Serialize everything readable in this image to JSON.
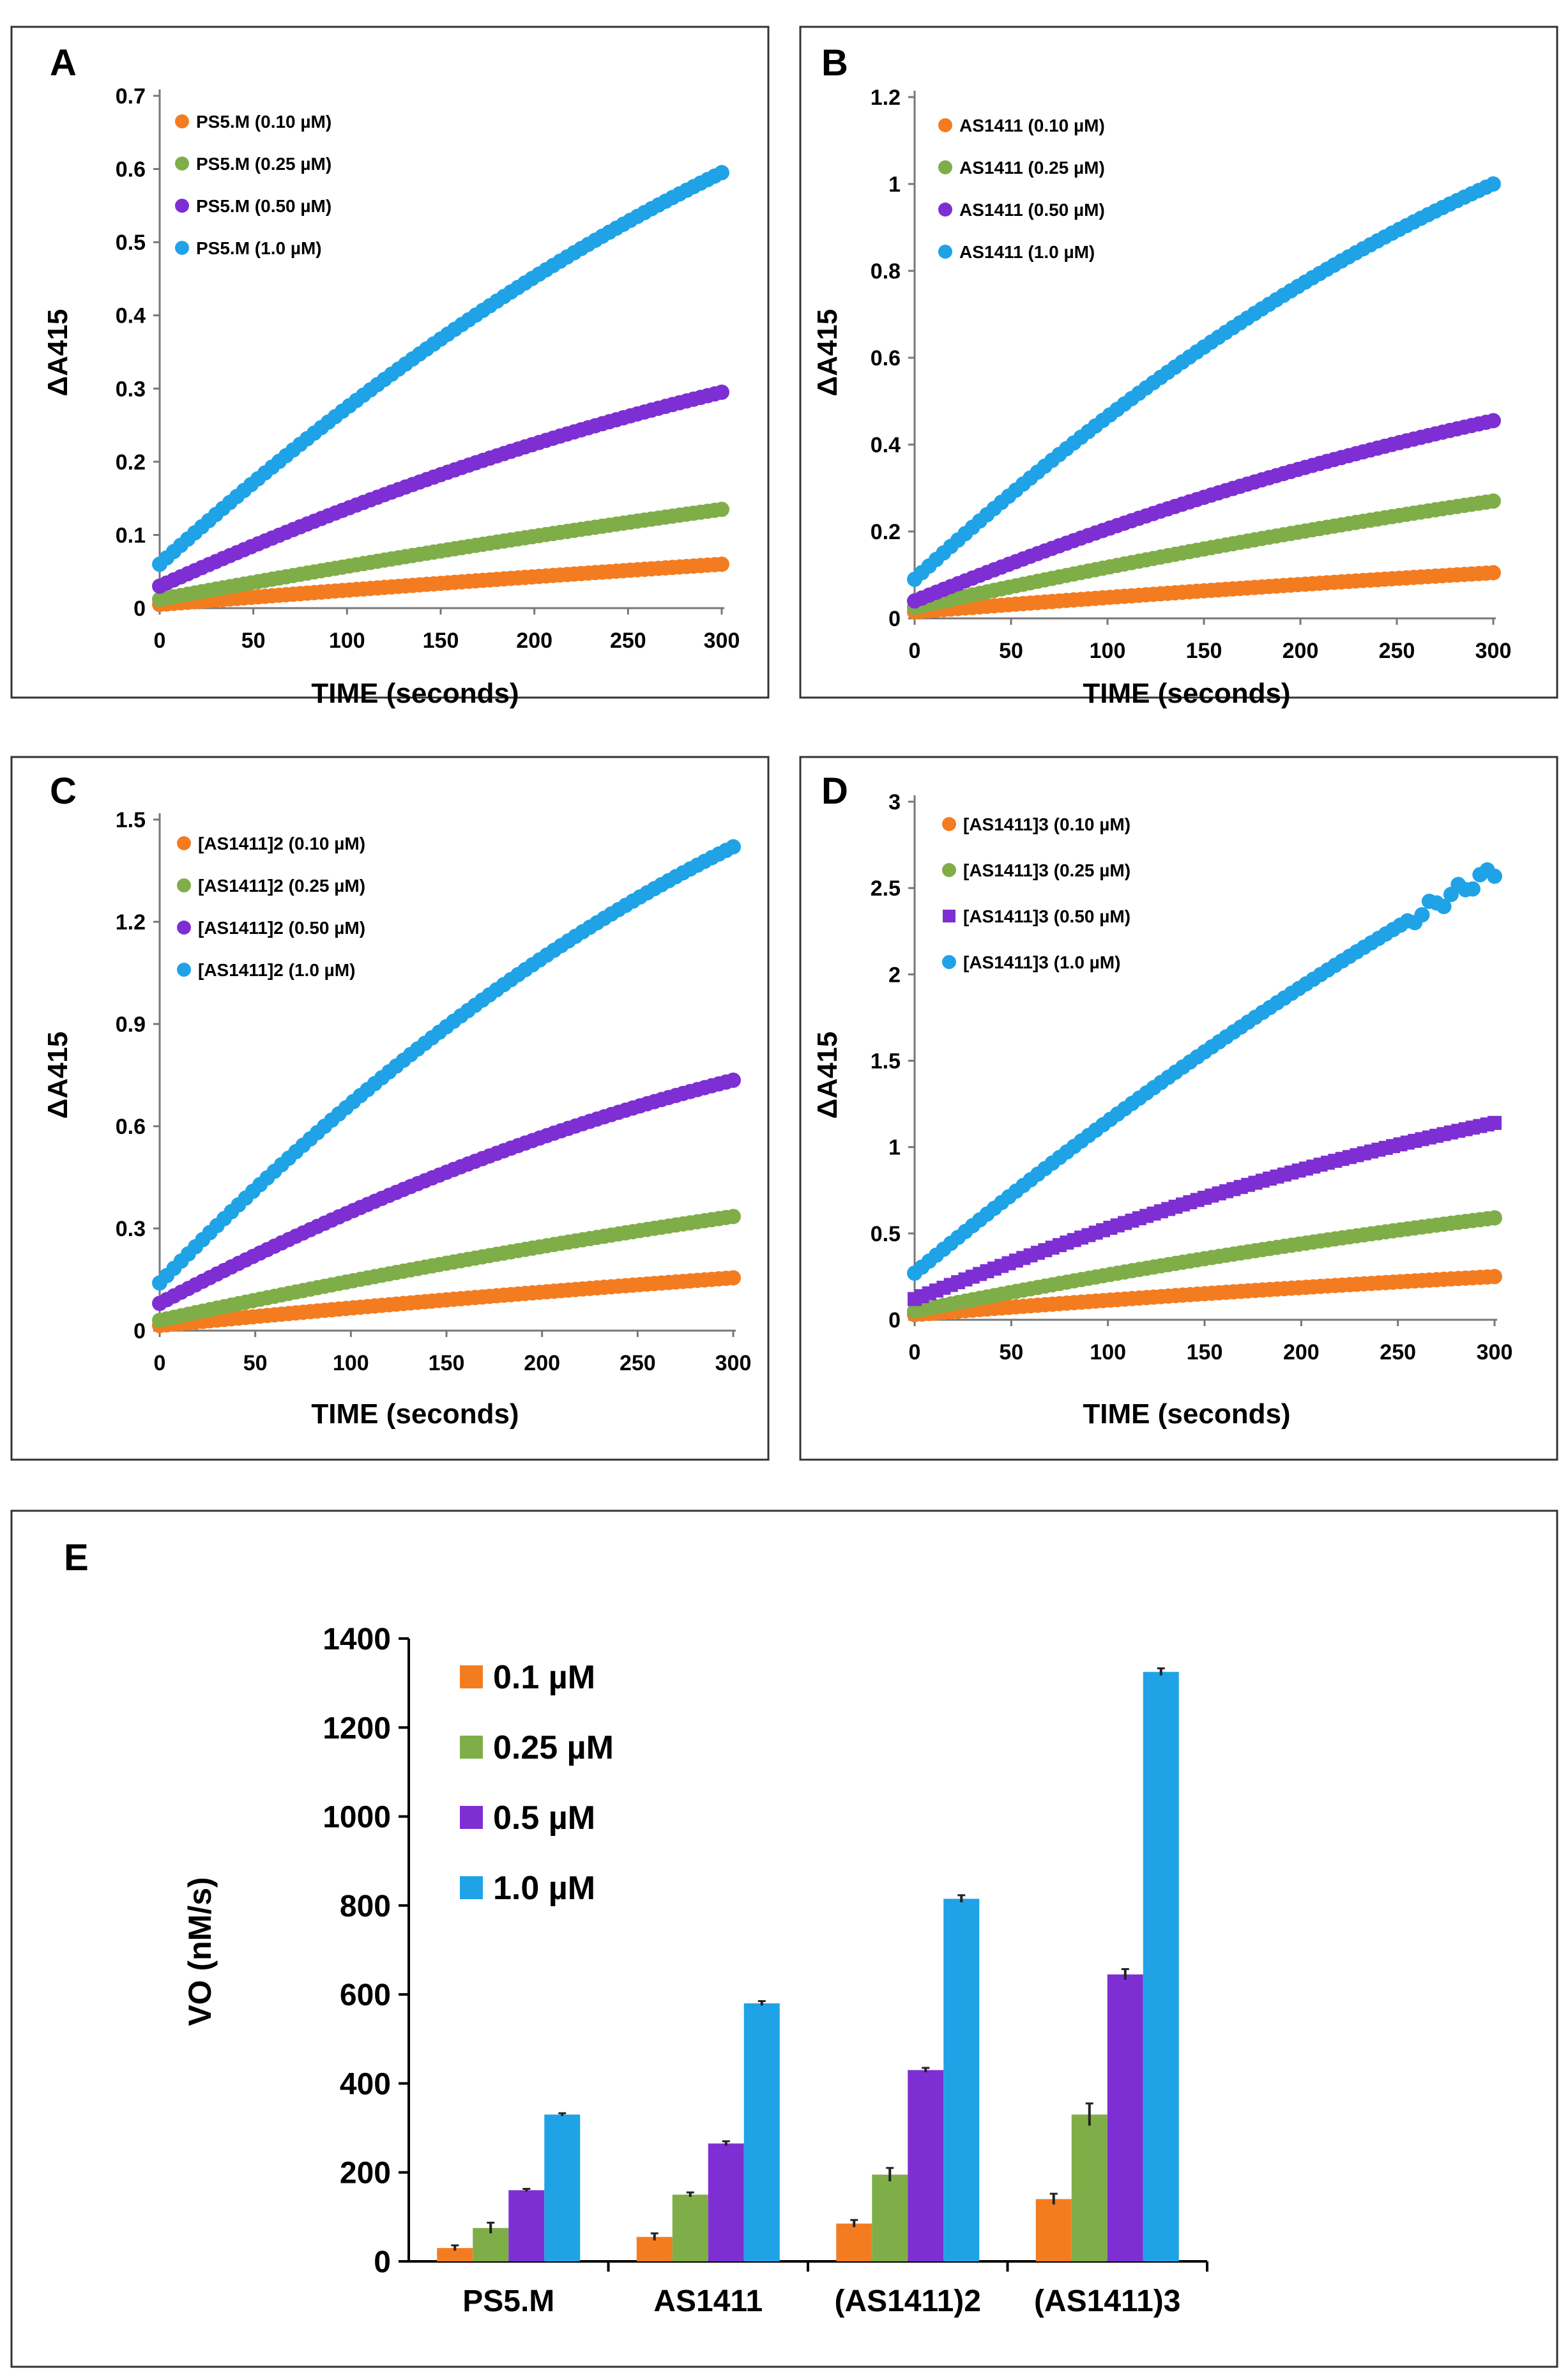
{
  "colors": {
    "orange": "#F47C20",
    "green": "#7FAE48",
    "purple": "#7E2FD3",
    "blue": "#1FA3E6"
  },
  "chart_data": [
    {
      "panel": "A",
      "type": "scatter",
      "xlabel": "TIME (seconds)",
      "ylabel": "ΔA415",
      "xlim": [
        0,
        300
      ],
      "ylim": [
        0,
        0.7
      ],
      "xticks": [
        "0",
        "50",
        "100",
        "150",
        "200",
        "250",
        "300"
      ],
      "yticks": [
        "0",
        "0.1",
        "0.2",
        "0.3",
        "0.4",
        "0.5",
        "0.6",
        "0.7"
      ],
      "legend_position": "top-left",
      "series": [
        {
          "name": "PS5.M (0.10 µM)",
          "color": "orange",
          "y0": 0.005,
          "y300": 0.06,
          "curve": 0.1
        },
        {
          "name": "PS5.M (0.25 µM)",
          "color": "green",
          "y0": 0.012,
          "y300": 0.135,
          "curve": 0.15
        },
        {
          "name": "PS5.M (0.50 µM)",
          "color": "purple",
          "y0": 0.03,
          "y300": 0.295,
          "curve": 0.3
        },
        {
          "name": "PS5.M (1.0 µM)",
          "color": "blue",
          "y0": 0.06,
          "y300": 0.595,
          "curve": 0.3
        }
      ]
    },
    {
      "panel": "B",
      "type": "scatter",
      "xlabel": "TIME (seconds)",
      "ylabel": "ΔA415",
      "xlim": [
        0,
        300
      ],
      "ylim": [
        0,
        1.2
      ],
      "xticks": [
        "0",
        "50",
        "100",
        "150",
        "200",
        "250",
        "300"
      ],
      "yticks": [
        "0",
        "0.2",
        "0.4",
        "0.6",
        "0.8",
        "1",
        "1.2"
      ],
      "legend_position": "top-left",
      "series": [
        {
          "name": "AS1411 (0.10 µM)",
          "color": "orange",
          "y0": 0.015,
          "y300": 0.105,
          "curve": 0.15
        },
        {
          "name": "AS1411 (0.25 µM)",
          "color": "green",
          "y0": 0.025,
          "y300": 0.27,
          "curve": 0.2
        },
        {
          "name": "AS1411 (0.50 µM)",
          "color": "purple",
          "y0": 0.04,
          "y300": 0.455,
          "curve": 0.3
        },
        {
          "name": "AS1411 (1.0 µM)",
          "color": "blue",
          "y0": 0.09,
          "y300": 1.0,
          "curve": 0.35
        }
      ]
    },
    {
      "panel": "C",
      "type": "scatter",
      "xlabel": "TIME (seconds)",
      "ylabel": "ΔA415",
      "xlim": [
        0,
        300
      ],
      "ylim": [
        0,
        1.5
      ],
      "xticks": [
        "0",
        "50",
        "100",
        "150",
        "200",
        "250",
        "300"
      ],
      "yticks": [
        "0",
        "0.3",
        "0.6",
        "0.9",
        "1.2",
        "1.5"
      ],
      "legend_position": "top-left",
      "series": [
        {
          "name": "[AS1411]2 (0.10 µM)",
          "color": "orange",
          "y0": 0.015,
          "y300": 0.155,
          "curve": 0.15
        },
        {
          "name": "[AS1411]2 (0.25 µM)",
          "color": "green",
          "y0": 0.03,
          "y300": 0.335,
          "curve": 0.2
        },
        {
          "name": "[AS1411]2 (0.50 µM)",
          "color": "purple",
          "y0": 0.08,
          "y300": 0.735,
          "curve": 0.35
        },
        {
          "name": "[AS1411]2 (1.0 µM)",
          "color": "blue",
          "y0": 0.14,
          "y300": 1.42,
          "curve": 0.35
        }
      ]
    },
    {
      "panel": "D",
      "type": "scatter",
      "xlabel": "TIME (seconds)",
      "ylabel": "ΔA415",
      "xlim": [
        0,
        300
      ],
      "ylim": [
        0,
        3
      ],
      "xticks": [
        "0",
        "50",
        "100",
        "150",
        "200",
        "250",
        "300"
      ],
      "yticks": [
        "0",
        "0.5",
        "1",
        "1.5",
        "2",
        "2.5",
        "3"
      ],
      "legend_position": "top-left",
      "series": [
        {
          "name": "[AS1411]3 (0.10 µM)",
          "color": "orange",
          "marker": "circle",
          "y0": 0.03,
          "y300": 0.25,
          "curve": 0.2
        },
        {
          "name": "[AS1411]3 (0.25 µM)",
          "color": "green",
          "marker": "circle",
          "y0": 0.05,
          "y300": 0.59,
          "curve": 0.25
        },
        {
          "name": "[AS1411]3 (0.50 µM)",
          "color": "purple",
          "marker": "square",
          "y0": 0.12,
          "y300": 1.14,
          "curve": 0.3
        },
        {
          "name": "[AS1411]3 (1.0 µM)",
          "color": "blue",
          "marker": "circle",
          "y0": 0.27,
          "y300": 2.6,
          "curve": 0.2
        }
      ]
    },
    {
      "panel": "E",
      "type": "bar",
      "ylabel": "VO (nM/s)",
      "ylim": [
        0,
        1400
      ],
      "yticks": [
        "0",
        "200",
        "400",
        "600",
        "800",
        "1000",
        "1200",
        "1400"
      ],
      "categories": [
        "PS5.M",
        "AS1411",
        "(AS1411)2",
        "(AS1411)3"
      ],
      "legend_position": "top-left",
      "series": [
        {
          "name": "0.1 µM",
          "color": "orange",
          "values": [
            30,
            55,
            85,
            140
          ],
          "errors": [
            6,
            8,
            8,
            12
          ]
        },
        {
          "name": "0.25 µM",
          "color": "green",
          "values": [
            75,
            150,
            195,
            330
          ],
          "errors": [
            12,
            5,
            15,
            25
          ]
        },
        {
          "name": "0.5 µM",
          "color": "purple",
          "values": [
            160,
            265,
            430,
            645
          ],
          "errors": [
            3,
            5,
            5,
            12
          ]
        },
        {
          "name": "1.0 µM",
          "color": "blue",
          "values": [
            330,
            580,
            815,
            1325
          ],
          "errors": [
            3,
            5,
            8,
            8
          ]
        }
      ]
    }
  ]
}
